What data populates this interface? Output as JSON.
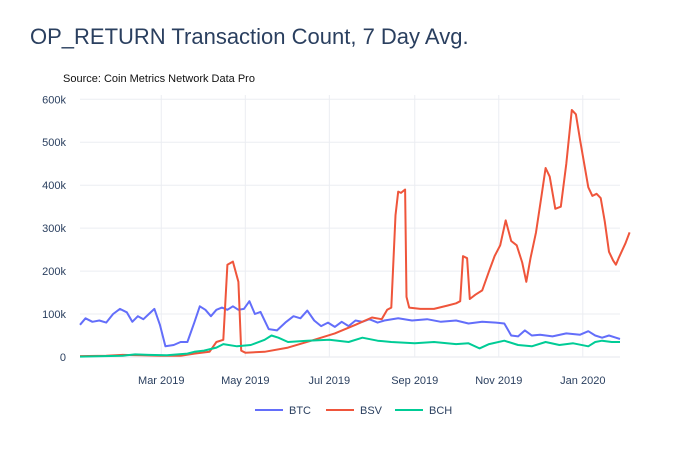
{
  "colors": {
    "BTC": "#636efa",
    "BSV": "#ef553b",
    "BCH": "#00cc96",
    "grid": "#ebedf2",
    "axis_text": "#2a3f5f"
  },
  "chart_data": {
    "type": "line",
    "title": "OP_RETURN Transaction Count, 7 Day Avg.",
    "subtitle": "Source: Coin Metrics Network Data Pro",
    "xlabel": "",
    "ylabel": "",
    "x_range": [
      "2019-01-01",
      "2020-01-28"
    ],
    "x_tick_values": [
      "2019-03-01",
      "2019-05-01",
      "2019-07-01",
      "2019-09-01",
      "2019-11-01",
      "2020-01-01"
    ],
    "x_tick_labels": [
      "Mar 2019",
      "May 2019",
      "Jul 2019",
      "Sep 2019",
      "Nov 2019",
      "Jan 2020"
    ],
    "ylim": [
      0,
      610000
    ],
    "y_ticks": [
      0,
      100000,
      200000,
      300000,
      400000,
      500000,
      600000
    ],
    "y_tick_labels": [
      "0",
      "100k",
      "200k",
      "300k",
      "400k",
      "500k",
      "600k"
    ],
    "grid": true,
    "legend_position": "bottom-center",
    "series": [
      {
        "name": "BTC",
        "points": [
          [
            "2019-01-01",
            75000
          ],
          [
            "2019-01-05",
            90000
          ],
          [
            "2019-01-10",
            82000
          ],
          [
            "2019-01-15",
            85000
          ],
          [
            "2019-01-20",
            80000
          ],
          [
            "2019-01-25",
            100000
          ],
          [
            "2019-01-30",
            112000
          ],
          [
            "2019-02-04",
            104000
          ],
          [
            "2019-02-08",
            82000
          ],
          [
            "2019-02-12",
            95000
          ],
          [
            "2019-02-16",
            88000
          ],
          [
            "2019-02-20",
            100000
          ],
          [
            "2019-02-24",
            112000
          ],
          [
            "2019-02-28",
            75000
          ],
          [
            "2019-03-04",
            25000
          ],
          [
            "2019-03-10",
            28000
          ],
          [
            "2019-03-15",
            35000
          ],
          [
            "2019-03-20",
            35000
          ],
          [
            "2019-03-25",
            80000
          ],
          [
            "2019-03-29",
            118000
          ],
          [
            "2019-04-02",
            110000
          ],
          [
            "2019-04-06",
            95000
          ],
          [
            "2019-04-10",
            110000
          ],
          [
            "2019-04-14",
            115000
          ],
          [
            "2019-04-18",
            110000
          ],
          [
            "2019-04-22",
            118000
          ],
          [
            "2019-04-26",
            110000
          ],
          [
            "2019-04-30",
            112000
          ],
          [
            "2019-05-04",
            130000
          ],
          [
            "2019-05-08",
            100000
          ],
          [
            "2019-05-12",
            105000
          ],
          [
            "2019-05-18",
            65000
          ],
          [
            "2019-05-24",
            62000
          ],
          [
            "2019-05-30",
            80000
          ],
          [
            "2019-06-05",
            95000
          ],
          [
            "2019-06-10",
            90000
          ],
          [
            "2019-06-15",
            108000
          ],
          [
            "2019-06-20",
            85000
          ],
          [
            "2019-06-25",
            72000
          ],
          [
            "2019-06-30",
            80000
          ],
          [
            "2019-07-05",
            70000
          ],
          [
            "2019-07-10",
            82000
          ],
          [
            "2019-07-15",
            72000
          ],
          [
            "2019-07-20",
            85000
          ],
          [
            "2019-07-25",
            82000
          ],
          [
            "2019-07-30",
            88000
          ],
          [
            "2019-08-05",
            80000
          ],
          [
            "2019-08-10",
            85000
          ],
          [
            "2019-08-20",
            90000
          ],
          [
            "2019-08-30",
            85000
          ],
          [
            "2019-09-10",
            88000
          ],
          [
            "2019-09-20",
            82000
          ],
          [
            "2019-10-01",
            85000
          ],
          [
            "2019-10-10",
            78000
          ],
          [
            "2019-10-20",
            82000
          ],
          [
            "2019-10-30",
            80000
          ],
          [
            "2019-11-05",
            78000
          ],
          [
            "2019-11-10",
            50000
          ],
          [
            "2019-11-15",
            48000
          ],
          [
            "2019-11-20",
            62000
          ],
          [
            "2019-11-25",
            50000
          ],
          [
            "2019-12-01",
            52000
          ],
          [
            "2019-12-10",
            48000
          ],
          [
            "2019-12-20",
            55000
          ],
          [
            "2019-12-30",
            52000
          ],
          [
            "2020-01-05",
            60000
          ],
          [
            "2020-01-10",
            50000
          ],
          [
            "2020-01-15",
            45000
          ],
          [
            "2020-01-20",
            50000
          ],
          [
            "2020-01-25",
            45000
          ],
          [
            "2020-01-28",
            42000
          ]
        ]
      },
      {
        "name": "BSV",
        "points": [
          [
            "2019-01-01",
            2000
          ],
          [
            "2019-01-20",
            3000
          ],
          [
            "2019-02-01",
            5000
          ],
          [
            "2019-02-15",
            4000
          ],
          [
            "2019-03-01",
            3000
          ],
          [
            "2019-03-15",
            3000
          ],
          [
            "2019-03-25",
            8000
          ],
          [
            "2019-04-05",
            12000
          ],
          [
            "2019-04-10",
            35000
          ],
          [
            "2019-04-15",
            40000
          ],
          [
            "2019-04-18",
            215000
          ],
          [
            "2019-04-22",
            222000
          ],
          [
            "2019-04-26",
            175000
          ],
          [
            "2019-04-28",
            15000
          ],
          [
            "2019-05-01",
            10000
          ],
          [
            "2019-05-15",
            12000
          ],
          [
            "2019-06-01",
            22000
          ],
          [
            "2019-06-20",
            40000
          ],
          [
            "2019-07-05",
            55000
          ],
          [
            "2019-07-20",
            75000
          ],
          [
            "2019-08-01",
            92000
          ],
          [
            "2019-08-08",
            88000
          ],
          [
            "2019-08-12",
            110000
          ],
          [
            "2019-08-15",
            115000
          ],
          [
            "2019-08-18",
            330000
          ],
          [
            "2019-08-20",
            385000
          ],
          [
            "2019-08-22",
            382000
          ],
          [
            "2019-08-25",
            390000
          ],
          [
            "2019-08-26",
            140000
          ],
          [
            "2019-08-28",
            115000
          ],
          [
            "2019-09-05",
            112000
          ],
          [
            "2019-09-15",
            112000
          ],
          [
            "2019-09-25",
            120000
          ],
          [
            "2019-10-01",
            125000
          ],
          [
            "2019-10-04",
            130000
          ],
          [
            "2019-10-06",
            235000
          ],
          [
            "2019-10-09",
            230000
          ],
          [
            "2019-10-11",
            135000
          ],
          [
            "2019-10-15",
            145000
          ],
          [
            "2019-10-20",
            155000
          ],
          [
            "2019-10-25",
            200000
          ],
          [
            "2019-10-29",
            235000
          ],
          [
            "2019-11-02",
            260000
          ],
          [
            "2019-11-06",
            318000
          ],
          [
            "2019-11-10",
            270000
          ],
          [
            "2019-11-14",
            260000
          ],
          [
            "2019-11-18",
            220000
          ],
          [
            "2019-11-21",
            175000
          ],
          [
            "2019-11-24",
            230000
          ],
          [
            "2019-11-28",
            290000
          ],
          [
            "2019-12-02",
            375000
          ],
          [
            "2019-12-05",
            440000
          ],
          [
            "2019-12-08",
            420000
          ],
          [
            "2019-12-12",
            345000
          ],
          [
            "2019-12-16",
            350000
          ],
          [
            "2019-12-20",
            450000
          ],
          [
            "2019-12-24",
            575000
          ],
          [
            "2019-12-27",
            565000
          ],
          [
            "2019-12-30",
            505000
          ],
          [
            "2020-01-02",
            450000
          ],
          [
            "2020-01-05",
            395000
          ],
          [
            "2020-01-08",
            375000
          ],
          [
            "2020-01-11",
            380000
          ],
          [
            "2020-01-14",
            370000
          ],
          [
            "2020-01-17",
            315000
          ],
          [
            "2020-01-20",
            245000
          ],
          [
            "2020-01-23",
            225000
          ],
          [
            "2020-01-25",
            215000
          ],
          [
            "2020-01-27",
            230000
          ],
          [
            "2020-02-01",
            265000
          ],
          [
            "2020-02-04",
            290000
          ]
        ]
      },
      {
        "name": "BCH",
        "points": [
          [
            "2019-01-01",
            1000
          ],
          [
            "2019-02-01",
            3000
          ],
          [
            "2019-02-10",
            6000
          ],
          [
            "2019-02-20",
            5000
          ],
          [
            "2019-03-05",
            4000
          ],
          [
            "2019-03-20",
            8000
          ],
          [
            "2019-03-25",
            12000
          ],
          [
            "2019-04-01",
            15000
          ],
          [
            "2019-04-10",
            22000
          ],
          [
            "2019-04-15",
            30000
          ],
          [
            "2019-04-25",
            25000
          ],
          [
            "2019-05-05",
            28000
          ],
          [
            "2019-05-15",
            40000
          ],
          [
            "2019-05-20",
            50000
          ],
          [
            "2019-05-25",
            45000
          ],
          [
            "2019-06-01",
            35000
          ],
          [
            "2019-06-15",
            38000
          ],
          [
            "2019-07-01",
            40000
          ],
          [
            "2019-07-15",
            35000
          ],
          [
            "2019-07-25",
            45000
          ],
          [
            "2019-08-05",
            38000
          ],
          [
            "2019-08-15",
            35000
          ],
          [
            "2019-09-01",
            32000
          ],
          [
            "2019-09-15",
            35000
          ],
          [
            "2019-10-01",
            30000
          ],
          [
            "2019-10-10",
            32000
          ],
          [
            "2019-10-18",
            20000
          ],
          [
            "2019-10-25",
            30000
          ],
          [
            "2019-11-05",
            38000
          ],
          [
            "2019-11-15",
            28000
          ],
          [
            "2019-11-25",
            25000
          ],
          [
            "2019-12-05",
            35000
          ],
          [
            "2019-12-15",
            28000
          ],
          [
            "2019-12-25",
            32000
          ],
          [
            "2020-01-05",
            25000
          ],
          [
            "2020-01-10",
            35000
          ],
          [
            "2020-01-15",
            38000
          ],
          [
            "2020-01-22",
            35000
          ],
          [
            "2020-01-28",
            35000
          ]
        ]
      }
    ]
  }
}
